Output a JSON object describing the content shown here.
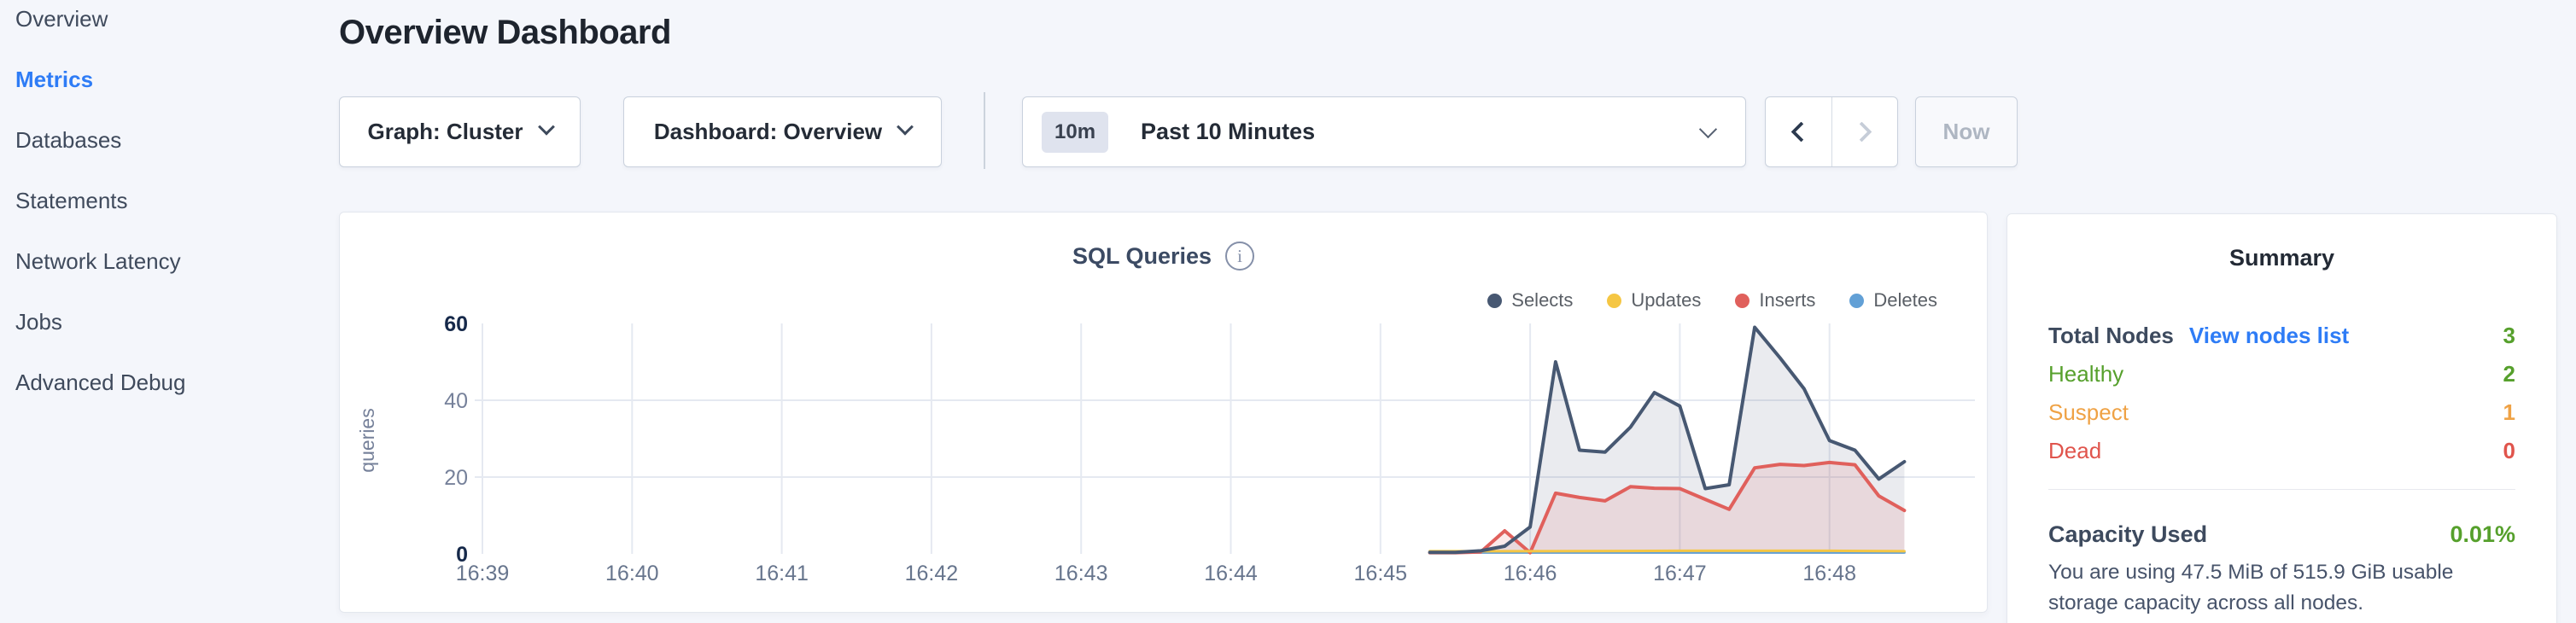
{
  "sidebar": {
    "items": [
      {
        "label": "Overview",
        "active": false
      },
      {
        "label": "Metrics",
        "active": true
      },
      {
        "label": "Databases",
        "active": false
      },
      {
        "label": "Statements",
        "active": false
      },
      {
        "label": "Network Latency",
        "active": false
      },
      {
        "label": "Jobs",
        "active": false
      },
      {
        "label": "Advanced Debug",
        "active": false
      }
    ],
    "active_color": "#2e7cf6"
  },
  "header": {
    "title": "Overview Dashboard"
  },
  "controls": {
    "graph_selector": "Graph: Cluster",
    "dashboard_selector": "Dashboard: Overview",
    "time_window_badge": "10m",
    "time_window_label": "Past 10 Minutes",
    "now_button": "Now"
  },
  "chart_data": {
    "type": "area",
    "title": "SQL Queries",
    "info_icon_glyph": "i",
    "ylabel": "queries",
    "xlabel": "",
    "x_ticks": [
      "16:39",
      "16:40",
      "16:41",
      "16:42",
      "16:43",
      "16:44",
      "16:45",
      "16:46",
      "16:47",
      "16:48"
    ],
    "y_ticks": [
      0,
      20,
      40,
      60
    ],
    "ylim": [
      0,
      60
    ],
    "grid": true,
    "legend_position": "top-right",
    "note": "series points are [minutes after 16:39, queries]",
    "series": [
      {
        "name": "Selects",
        "color": "#475872",
        "fill": "rgba(90,104,130,0.13)",
        "points": [
          [
            6.33,
            0.4
          ],
          [
            6.5,
            0.4
          ],
          [
            6.67,
            0.8
          ],
          [
            6.83,
            2
          ],
          [
            7,
            7
          ],
          [
            7.17,
            50
          ],
          [
            7.33,
            27
          ],
          [
            7.5,
            26.5
          ],
          [
            7.67,
            33
          ],
          [
            7.83,
            42
          ],
          [
            8,
            38.5
          ],
          [
            8.17,
            17
          ],
          [
            8.33,
            18
          ],
          [
            8.5,
            59
          ],
          [
            8.67,
            51
          ],
          [
            8.83,
            43
          ],
          [
            9,
            29.5
          ],
          [
            9.17,
            27
          ],
          [
            9.33,
            19.5
          ],
          [
            9.5,
            24
          ]
        ]
      },
      {
        "name": "Updates",
        "color": "#f5c643",
        "points": [
          [
            6.33,
            0.7
          ],
          [
            7,
            0.7
          ],
          [
            8,
            0.8
          ],
          [
            9,
            0.8
          ],
          [
            9.5,
            0.7
          ]
        ]
      },
      {
        "name": "Inserts",
        "color": "#e0605c",
        "fill": "rgba(224,96,92,0.13)",
        "points": [
          [
            6.33,
            0.3
          ],
          [
            6.5,
            0.3
          ],
          [
            6.67,
            0.5
          ],
          [
            6.83,
            6
          ],
          [
            7,
            0.3
          ],
          [
            7.17,
            15.8
          ],
          [
            7.33,
            14.7
          ],
          [
            7.5,
            13.8
          ],
          [
            7.67,
            17.5
          ],
          [
            7.83,
            17.1
          ],
          [
            8,
            17
          ],
          [
            8.17,
            14.2
          ],
          [
            8.33,
            11.6
          ],
          [
            8.5,
            22.4
          ],
          [
            8.67,
            23.3
          ],
          [
            8.83,
            23
          ],
          [
            9,
            23.8
          ],
          [
            9.17,
            23.2
          ],
          [
            9.33,
            15.1
          ],
          [
            9.5,
            11.3
          ]
        ]
      },
      {
        "name": "Deletes",
        "color": "#62a0d6",
        "points": [
          [
            6.33,
            0.35
          ],
          [
            9.5,
            0.35
          ]
        ]
      }
    ]
  },
  "summary": {
    "title": "Summary",
    "rows": [
      {
        "label": "Total Nodes",
        "label_color": "#3d4a5e",
        "bold": true,
        "link": "View nodes list",
        "value": "3",
        "color": "#56a02c"
      },
      {
        "label": "Healthy",
        "label_color": "#56a02c",
        "value": "2",
        "color": "#56a02c"
      },
      {
        "label": "Suspect",
        "label_color": "#efa245",
        "value": "1",
        "color": "#efa245"
      },
      {
        "label": "Dead",
        "label_color": "#e0544c",
        "value": "0",
        "color": "#e0544c"
      }
    ],
    "capacity_label": "Capacity Used",
    "capacity_value": "0.01%",
    "capacity_color": "#56a02c",
    "capacity_description": "You are using 47.5 MiB of 515.9 GiB usable storage capacity across all nodes."
  }
}
